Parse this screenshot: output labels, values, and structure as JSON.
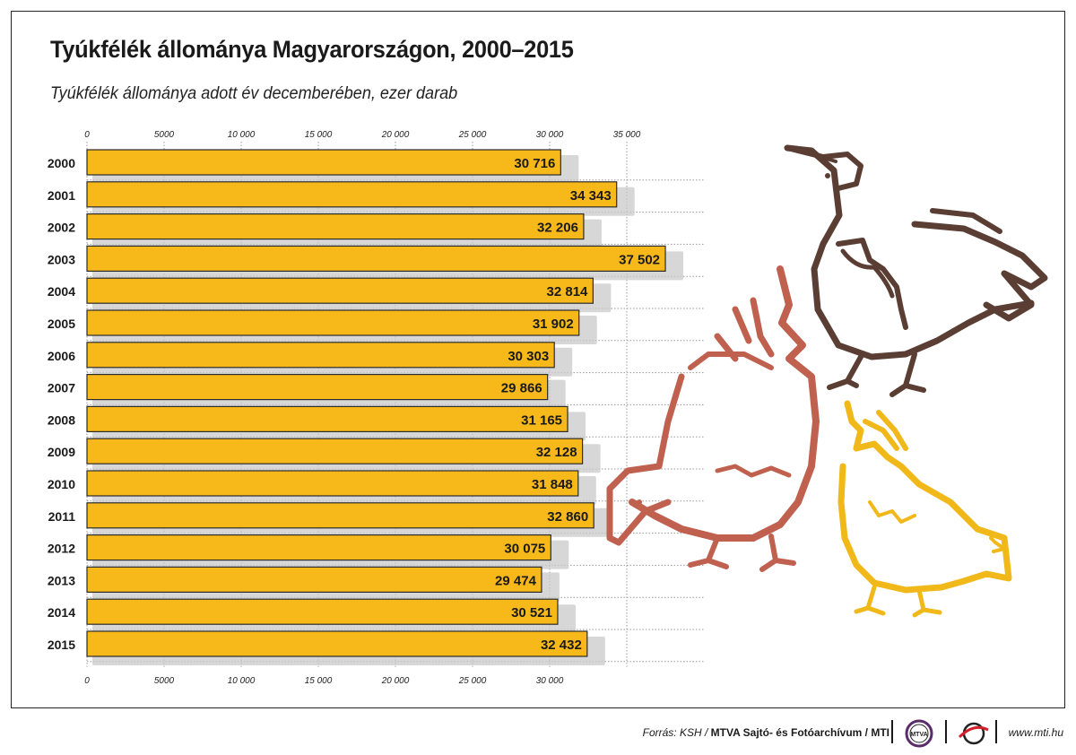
{
  "header": {
    "title": "Tyúkfélék állománya Magyarországon, 2000–2015",
    "subtitle": "Tyúkfélék állománya adott év decemberében, ezer darab"
  },
  "colors": {
    "bar": "#f7b81a",
    "bar_border": "#2b2b2b",
    "shadow": "#c9c9c9",
    "grid": "#9a9a9a",
    "hen_brown": "#5a3d33",
    "hen_red": "#c0604f",
    "hen_yellow": "#f1b81a"
  },
  "chart_data": {
    "type": "bar",
    "orientation": "horizontal",
    "categories": [
      "2000",
      "2001",
      "2002",
      "2003",
      "2004",
      "2005",
      "2006",
      "2007",
      "2008",
      "2009",
      "2010",
      "2011",
      "2012",
      "2013",
      "2014",
      "2015"
    ],
    "values": [
      30716,
      34343,
      32206,
      37502,
      32814,
      31902,
      30303,
      29866,
      31165,
      32128,
      31848,
      32860,
      30075,
      29474,
      30521,
      32432
    ],
    "value_labels": [
      "30 716",
      "34 343",
      "32 206",
      "37 502",
      "32 814",
      "31 902",
      "30 303",
      "29 866",
      "31 165",
      "32 128",
      "31 848",
      "32 860",
      "30 075",
      "29 474",
      "30 521",
      "32 432"
    ],
    "ticks": [
      0,
      5000,
      10000,
      15000,
      20000,
      25000,
      30000,
      35000
    ],
    "top_tick_labels": [
      "0",
      "5000",
      "10 000",
      "15 000",
      "20 000",
      "25 000",
      "30 000",
      "35 000"
    ],
    "bottom_tick_labels": [
      "0",
      "5000",
      "10 000",
      "15 000",
      "20 000",
      "25 000",
      "30 000"
    ],
    "xlim": [
      0,
      40000
    ],
    "grid": true,
    "title": "Tyúkfélék állománya Magyarországon, 2000–2015",
    "xlabel": "",
    "ylabel": ""
  },
  "footer": {
    "source_prefix": "Forrás: KSH / ",
    "source_org": "MTVA Sajtó- és Fotóarchívum / MTI",
    "logo_mtva_text": "MTVA",
    "website": "www.mti.hu"
  },
  "icons": [
    "hen-brown-illustration",
    "hen-red-illustration",
    "hen-yellow-illustration",
    "mtva-logo-icon",
    "mti-logo-icon"
  ]
}
